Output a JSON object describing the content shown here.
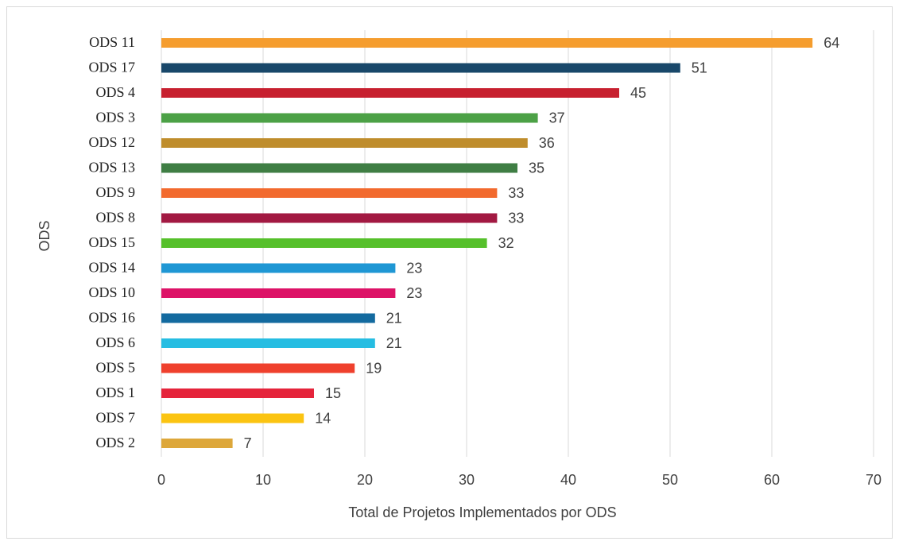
{
  "chart_data": {
    "type": "bar",
    "orientation": "horizontal",
    "xlabel": "Total de Projetos Implementados por ODS",
    "ylabel": "ODS",
    "categories": [
      "ODS 11",
      "ODS 17",
      "ODS 4",
      "ODS 3",
      "ODS 12",
      "ODS 13",
      "ODS 9",
      "ODS 8",
      "ODS 15",
      "ODS 14",
      "ODS 10",
      "ODS 16",
      "ODS 6",
      "ODS 5",
      "ODS 1",
      "ODS 7",
      "ODS 2"
    ],
    "values": [
      64,
      51,
      45,
      37,
      36,
      35,
      33,
      33,
      32,
      23,
      23,
      21,
      21,
      19,
      15,
      14,
      7
    ],
    "colors": [
      "#f59d2e",
      "#19486a",
      "#c7202f",
      "#4ca146",
      "#bf8d2c",
      "#3f7e44",
      "#f26a2e",
      "#a21942",
      "#56c02b",
      "#1f97d4",
      "#dd1367",
      "#136a9f",
      "#26bde2",
      "#ef402d",
      "#e5243b",
      "#fbc412",
      "#dda73a"
    ],
    "xlim": [
      0,
      70
    ],
    "xticks": [
      0,
      10,
      20,
      30,
      40,
      50,
      60,
      70
    ],
    "grid": true
  }
}
